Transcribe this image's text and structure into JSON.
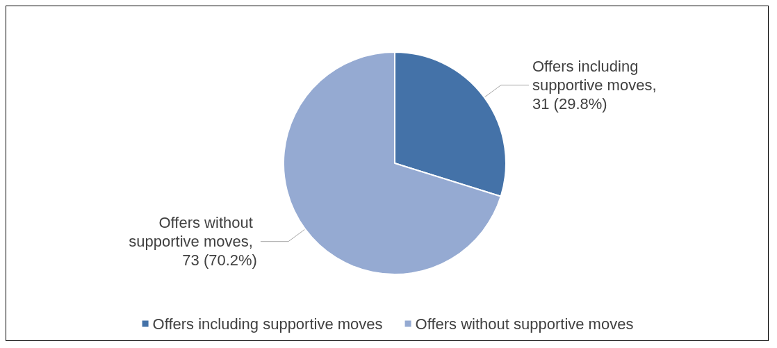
{
  "chart_data": {
    "type": "pie",
    "categories": [
      "Offers including supportive moves",
      "Offers without supportive moves"
    ],
    "values": [
      31,
      73
    ],
    "colors": [
      "#4472a8",
      "#95aad2"
    ],
    "value_labels": [
      "Offers including supportive moves, 31 (29.8%)",
      "Offers without supportive moves, 73 (70.2%)"
    ],
    "legend": "bottom"
  }
}
